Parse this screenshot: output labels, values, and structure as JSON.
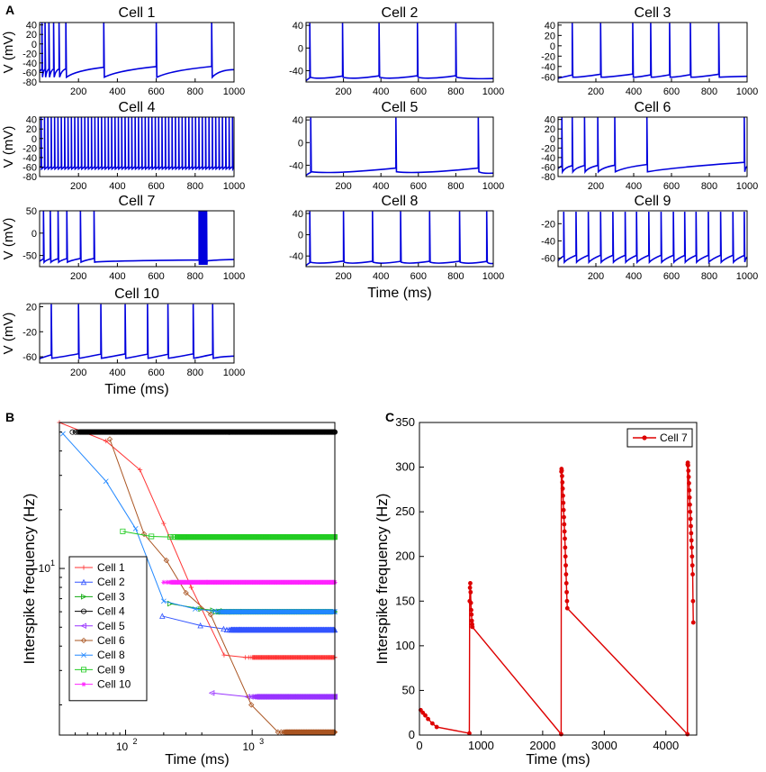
{
  "panel_labels": {
    "a": "A",
    "b": "B",
    "c": "C"
  },
  "colors": {
    "trace": "#0000dd",
    "axis": "#000000"
  },
  "chart_data": [
    {
      "type": "line",
      "panel": "A",
      "description": "Membrane voltage traces of 10 model cells",
      "xlabel": "Time (ms)",
      "ylabel": "V (mV)",
      "xticks": [
        "200",
        "400",
        "600",
        "800",
        "1000"
      ],
      "xlim": [
        0,
        1000
      ],
      "subplots": [
        {
          "title": "Cell 1",
          "ylim": [
            -80,
            45
          ],
          "yticks": [
            40,
            20,
            0,
            -20,
            -40,
            -60,
            -80
          ],
          "ytick_labels": [
            "40",
            "20",
            "0",
            "-20",
            "-40",
            "-60",
            "-80"
          ],
          "rest": -55,
          "spikes": [
            12,
            28,
            48,
            72,
            100,
            135,
            330,
            600,
            885
          ]
        },
        {
          "title": "Cell 2",
          "ylim": [
            -60,
            45
          ],
          "yticks": [
            40,
            0,
            -40
          ],
          "ytick_labels": [
            "40",
            "0",
            "-40"
          ],
          "rest": -55,
          "spikes": [
            20,
            195,
            390,
            595,
            800
          ]
        },
        {
          "title": "Cell 3",
          "ylim": [
            -70,
            45
          ],
          "yticks": [
            40,
            20,
            0,
            -20,
            -40,
            -60
          ],
          "ytick_labels": [
            "40",
            "20",
            "0",
            "-20",
            "-40",
            "-60"
          ],
          "rest": -60,
          "spikes": [
            75,
            225,
            395,
            490,
            590,
            700,
            850
          ]
        },
        {
          "title": "Cell 4",
          "ylim": [
            -80,
            45
          ],
          "yticks": [
            40,
            20,
            0,
            -20,
            -40,
            -60,
            -80
          ],
          "ytick_labels": [
            "40",
            "20",
            "0",
            "-20",
            "-40",
            "-60",
            "-80"
          ],
          "rest": -60,
          "spikes": []
        },
        {
          "title": "Cell 5",
          "ylim": [
            -60,
            45
          ],
          "yticks": [
            40,
            0,
            -40
          ],
          "ytick_labels": [
            "40",
            "0",
            "-40"
          ],
          "rest": -55,
          "spikes": [
            25,
            480,
            920
          ]
        },
        {
          "title": "Cell 6",
          "ylim": [
            -80,
            45
          ],
          "yticks": [
            40,
            20,
            0,
            -20,
            -40,
            -60,
            -80
          ],
          "ytick_labels": [
            "40",
            "20",
            "0",
            "-20",
            "-40",
            "-60",
            "-80"
          ],
          "rest": -60,
          "spikes": [
            20,
            75,
            140,
            210,
            300,
            470,
            985
          ]
        },
        {
          "title": "Cell 7",
          "ylim": [
            -75,
            50
          ],
          "yticks": [
            50,
            0,
            -50
          ],
          "ytick_labels": [
            "50",
            "0",
            "-50"
          ],
          "rest": -60,
          "spikes": [
            20,
            55,
            95,
            140,
            210,
            280
          ],
          "burst": [
            820,
            860
          ]
        },
        {
          "title": "Cell 8",
          "ylim": [
            -60,
            45
          ],
          "yticks": [
            40,
            0,
            -40
          ],
          "ytick_labels": [
            "40",
            "0",
            "-40"
          ],
          "rest": -55,
          "spikes": [
            20,
            200,
            355,
            505,
            660,
            820,
            965
          ]
        },
        {
          "title": "Cell 9",
          "ylim": [
            -70,
            -5
          ],
          "yticks": [
            -20,
            -40,
            -60
          ],
          "ytick_labels": [
            "-20",
            "-40",
            "-60"
          ],
          "rest": -60,
          "spikes": [
            30,
            95,
            160,
            225,
            290,
            355,
            415,
            480,
            545,
            610,
            670,
            730,
            795,
            860,
            925,
            985
          ]
        },
        {
          "title": "Cell 10",
          "ylim": [
            -70,
            25
          ],
          "yticks": [
            20,
            -20,
            -60
          ],
          "ytick_labels": [
            "20",
            "-20",
            "-60"
          ],
          "rest": -60,
          "spikes": [
            60,
            200,
            315,
            440,
            555,
            660,
            790,
            890
          ]
        }
      ]
    },
    {
      "type": "line",
      "panel": "B",
      "title": "",
      "xlabel": "Time (ms)",
      "ylabel": "Interspike frequency (Hz)",
      "xscale": "log",
      "yscale": "log",
      "xlim": [
        30,
        4500
      ],
      "ylim": [
        1.4,
        56
      ],
      "xtick_labels": [
        {
          "base": "10",
          "exp": "2",
          "value": 100
        },
        {
          "base": "10",
          "exp": "3",
          "value": 1000
        }
      ],
      "ytick_labels": [
        {
          "base": "10",
          "exp": "1",
          "value": 10
        }
      ],
      "legend_position": "bottom-left",
      "series": [
        {
          "name": "Cell 1",
          "color": "#ff3333",
          "marker": "+",
          "x": [
            30,
            70,
            130,
            200,
            330,
            600,
            885,
            4500
          ],
          "y": [
            56,
            45,
            32,
            17,
            8,
            3.6,
            3.5,
            3.5
          ],
          "flat_from": 885
        },
        {
          "name": "Cell 2",
          "color": "#3355ff",
          "marker": "^",
          "x": [
            195,
            390,
            595,
            800,
            4500
          ],
          "y": [
            5.7,
            5.1,
            4.9,
            4.85,
            4.85
          ],
          "flat_from": 595
        },
        {
          "name": "Cell 3",
          "color": "#11aa11",
          "marker": ">",
          "x": [
            225,
            395,
            490,
            590,
            700,
            850,
            4500
          ],
          "y": [
            6.6,
            6.2,
            6.1,
            6.05,
            6.0,
            6.0,
            6.0
          ],
          "flat_from": 490
        },
        {
          "name": "Cell 4",
          "color": "#000000",
          "marker": "o",
          "x": [
            38,
            4500
          ],
          "y": [
            50,
            50
          ],
          "flat_from": 38
        },
        {
          "name": "Cell 5",
          "color": "#9933ff",
          "marker": "<",
          "x": [
            480,
            920,
            4500
          ],
          "y": [
            2.3,
            2.2,
            2.2
          ],
          "flat_from": 920
        },
        {
          "name": "Cell 6",
          "color": "#aa5522",
          "marker": "d",
          "x": [
            75,
            140,
            210,
            300,
            470,
            985,
            1600,
            4500
          ],
          "y": [
            46,
            15,
            11,
            7.5,
            5.8,
            2.0,
            1.45,
            1.45
          ],
          "flat_from": 1600
        },
        {
          "name": "Cell 8",
          "color": "#2288ff",
          "marker": "x",
          "x": [
            32,
            70,
            120,
            200,
            355,
            505,
            660,
            820,
            4500
          ],
          "y": [
            49,
            28,
            16,
            6.8,
            6.2,
            6.05,
            6.0,
            6.0,
            6.0
          ],
          "flat_from": 505
        },
        {
          "name": "Cell 9",
          "color": "#22cc22",
          "marker": "s",
          "x": [
            95,
            160,
            225,
            290,
            4500
          ],
          "y": [
            15.5,
            14.6,
            14.5,
            14.5,
            14.5
          ],
          "flat_from": 225
        },
        {
          "name": "Cell 10",
          "color": "#ff22ff",
          "marker": "*",
          "x": [
            200,
            315,
            440,
            4500
          ],
          "y": [
            8.5,
            8.5,
            8.5,
            8.5
          ],
          "flat_from": 200
        }
      ]
    },
    {
      "type": "line",
      "panel": "C",
      "title": "",
      "xlabel": "Time (ms)",
      "ylabel": "Interspike frequency (Hz)",
      "xlim": [
        0,
        4500
      ],
      "ylim": [
        0,
        350
      ],
      "xticks": [
        0,
        1000,
        2000,
        3000,
        4000
      ],
      "xtick_labels": [
        "0",
        "1000",
        "2000",
        "3000",
        "4000"
      ],
      "yticks": [
        0,
        50,
        100,
        150,
        200,
        250,
        300,
        350
      ],
      "ytick_labels": [
        "0",
        "50",
        "100",
        "150",
        "200",
        "250",
        "300",
        "350"
      ],
      "legend_position": "top-right",
      "series": [
        {
          "name": "Cell 7",
          "color": "#dd0000",
          "marker": "o",
          "x": [
            20,
            55,
            95,
            140,
            210,
            280,
            810,
            815,
            820,
            825,
            830,
            835,
            840,
            845,
            850,
            855,
            860,
            2300,
            2303,
            2306,
            2310,
            2315,
            2320,
            2325,
            2330,
            2335,
            2340,
            2345,
            2350,
            2355,
            2360,
            2365,
            2370,
            2375,
            2380,
            2385,
            2390,
            2395,
            2400,
            4350,
            4353,
            4356,
            4360,
            4365,
            4370,
            4375,
            4380,
            4385,
            4390,
            4395,
            4400,
            4405,
            4410,
            4415,
            4420,
            4425,
            4430,
            4435,
            4440,
            4445
          ],
          "y": [
            28,
            25,
            22,
            18,
            13,
            9,
            2,
            150,
            165,
            170,
            160,
            148,
            140,
            135,
            128,
            124,
            121,
            1,
            295,
            298,
            296,
            290,
            283,
            276,
            268,
            260,
            252,
            244,
            236,
            228,
            220,
            210,
            200,
            190,
            180,
            170,
            160,
            150,
            142,
            1,
            303,
            305,
            302,
            296,
            289,
            282,
            274,
            266,
            258,
            250,
            242,
            234,
            226,
            218,
            210,
            200,
            190,
            180,
            150,
            126
          ]
        }
      ]
    }
  ]
}
